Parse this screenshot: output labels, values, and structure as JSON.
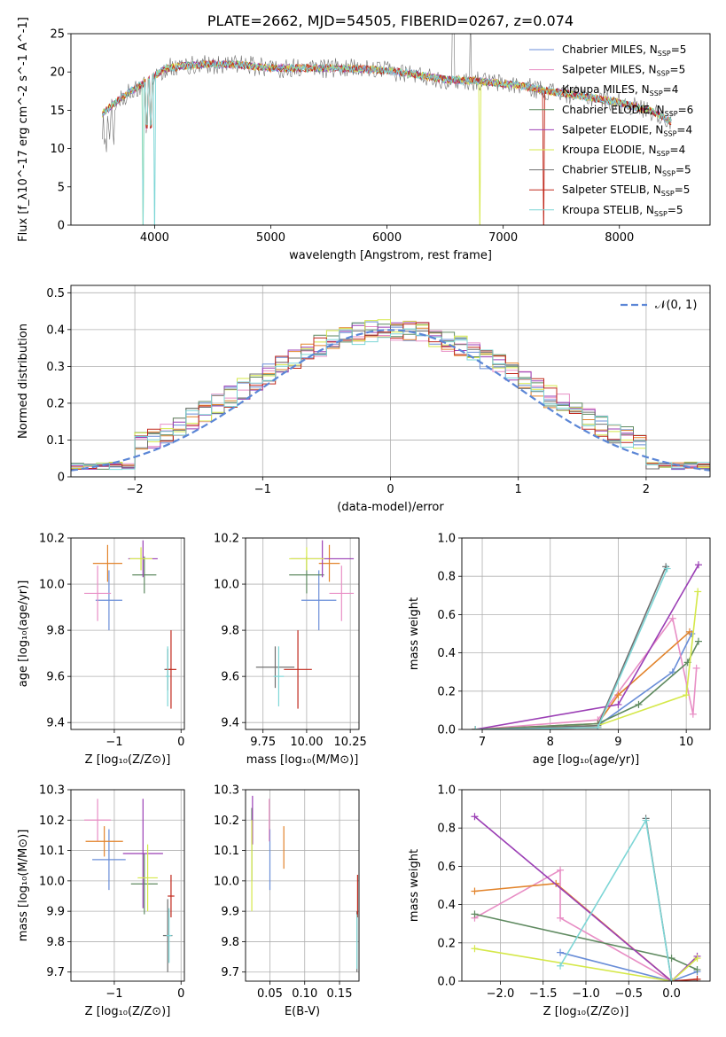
{
  "colors": [
    "#6a8ed8",
    "#e88ec5",
    "#e2842c",
    "#5f8a60",
    "#9b3fb5",
    "#d5e84a",
    "#707070",
    "#c0281c",
    "#7dd6d6"
  ],
  "chart_data": [
    {
      "id": "spectrum",
      "type": "line",
      "title": "PLATE=2662, MJD=54505, FIBERID=0267, z=0.074",
      "xlabel": "wavelength [Angstrom, rest frame]",
      "ylabel": "Flux [f_λ10^-17 erg cm^-2 s^-1 A^-1]",
      "xlim": [
        3280,
        8780
      ],
      "ylim": [
        0,
        25
      ],
      "xticks": [
        4000,
        5000,
        6000,
        7000,
        8000
      ],
      "yticks": [
        0,
        5,
        10,
        15,
        20,
        25
      ],
      "legend": [
        "Chabrier MILES, N_SSP=5",
        "Salpeter MILES, N_SSP=5",
        "Kroupa MILES, N_SSP=4",
        "Chabrier ELODIE, N_SSP=6",
        "Salpeter ELODIE, N_SSP=4",
        "Kroupa ELODIE, N_SSP=4",
        "Chabrier STELIB, N_SSP=5",
        "Salpeter STELIB, N_SSP=5",
        "Kroupa STELIB, N_SSP=5"
      ],
      "continuum": {
        "x": [
          3550,
          3700,
          3900,
          4100,
          4400,
          4700,
          5000,
          5300,
          5600,
          5900,
          6200,
          6500,
          6800,
          7100,
          7400,
          7700,
          8000,
          8300,
          8450
        ],
        "y": [
          14.5,
          16.5,
          18.5,
          20.5,
          21.0,
          21.0,
          20.5,
          20.5,
          20.5,
          20.3,
          19.8,
          19.0,
          18.8,
          18.3,
          17.5,
          16.8,
          16.0,
          14.8,
          13.5
        ]
      }
    },
    {
      "id": "residuals",
      "type": "histogram",
      "xlabel": "(data-model)/error",
      "ylabel": "Normed distribution",
      "xlim": [
        -2.5,
        2.5
      ],
      "ylim": [
        0,
        0.52
      ],
      "xticks": [
        -2,
        -1,
        0,
        1,
        2
      ],
      "yticks": [
        0.0,
        0.1,
        0.2,
        0.3,
        0.4,
        0.5
      ],
      "legend": [
        "𝒩(0, 1)"
      ],
      "bin_width": 0.1
    },
    {
      "id": "age-vs-Z",
      "type": "scatter",
      "xlabel": "Z [log₁₀(Z/Z⊙)]",
      "ylabel": "age  [log₁₀(age/yr)]",
      "xlim": [
        -1.65,
        0.05
      ],
      "ylim": [
        9.37,
        10.2
      ],
      "xticks": [
        -1,
        0
      ],
      "yticks": [
        9.4,
        9.6,
        9.8,
        10.0,
        10.2
      ],
      "points": [
        {
          "x": -1.08,
          "y": 9.93,
          "xerr": 0.2,
          "yerr": 0.13
        },
        {
          "x": -1.25,
          "y": 9.96,
          "xerr": 0.2,
          "yerr": 0.12
        },
        {
          "x": -1.1,
          "y": 10.09,
          "xerr": 0.22,
          "yerr": 0.08
        },
        {
          "x": -0.55,
          "y": 10.04,
          "xerr": 0.18,
          "yerr": 0.08
        },
        {
          "x": -0.57,
          "y": 10.11,
          "xerr": 0.22,
          "yerr": 0.08
        },
        {
          "x": -0.6,
          "y": 10.11,
          "xerr": 0.17,
          "yerr": 0.05
        },
        {
          "x": -0.2,
          "y": 9.63,
          "xerr": 0.05,
          "yerr": 0.09
        },
        {
          "x": -0.15,
          "y": 9.63,
          "xerr": 0.08,
          "yerr": 0.17
        },
        {
          "x": -0.2,
          "y": 9.6,
          "xerr": 0.03,
          "yerr": 0.13
        }
      ]
    },
    {
      "id": "age-vs-mass",
      "type": "scatter",
      "xlabel": "mass [log₁₀(M/M⊙)]",
      "ylabel": "",
      "xlim": [
        9.65,
        10.3
      ],
      "ylim": [
        9.37,
        10.2
      ],
      "xticks": [
        9.75,
        10.0,
        10.25
      ],
      "yticks": [
        9.4,
        9.6,
        9.8,
        10.0,
        10.2
      ],
      "points": [
        {
          "x": 10.07,
          "y": 9.93,
          "xerr": 0.1,
          "yerr": 0.13
        },
        {
          "x": 10.2,
          "y": 9.96,
          "xerr": 0.07,
          "yerr": 0.12
        },
        {
          "x": 10.13,
          "y": 10.09,
          "xerr": 0.06,
          "yerr": 0.08
        },
        {
          "x": 10.0,
          "y": 10.04,
          "xerr": 0.1,
          "yerr": 0.08
        },
        {
          "x": 10.09,
          "y": 10.11,
          "xerr": 0.18,
          "yerr": 0.08
        },
        {
          "x": 10.0,
          "y": 10.11,
          "xerr": 0.1,
          "yerr": 0.05
        },
        {
          "x": 9.82,
          "y": 9.64,
          "xerr": 0.11,
          "yerr": 0.09
        },
        {
          "x": 9.95,
          "y": 9.63,
          "xerr": 0.08,
          "yerr": 0.17
        },
        {
          "x": 9.84,
          "y": 9.6,
          "xerr": 0.03,
          "yerr": 0.13
        }
      ]
    },
    {
      "id": "weight-vs-age",
      "type": "line",
      "xlabel": "age  [log₁₀(age/yr)]",
      "ylabel": "mass weight",
      "xlim": [
        6.7,
        10.35
      ],
      "ylim": [
        0,
        1.0
      ],
      "xticks": [
        7,
        8,
        9,
        10
      ],
      "yticks": [
        0.0,
        0.2,
        0.4,
        0.6,
        0.8,
        1.0
      ],
      "series": [
        {
          "x": [
            6.9,
            8.7,
            9.8,
            10.08
          ],
          "y": [
            0.0,
            0.02,
            0.3,
            0.5
          ]
        },
        {
          "x": [
            6.9,
            8.7,
            9.8,
            10.1,
            10.15
          ],
          "y": [
            0.0,
            0.05,
            0.58,
            0.08,
            0.32
          ]
        },
        {
          "x": [
            6.9,
            8.7,
            9.0,
            10.05
          ],
          "y": [
            0.0,
            0.03,
            0.18,
            0.51
          ]
        },
        {
          "x": [
            6.9,
            8.7,
            9.3,
            10.02,
            10.18
          ],
          "y": [
            0.0,
            0.03,
            0.13,
            0.35,
            0.46
          ]
        },
        {
          "x": [
            6.9,
            9.0,
            10.18
          ],
          "y": [
            0.0,
            0.13,
            0.86
          ]
        },
        {
          "x": [
            6.9,
            8.7,
            10.0,
            10.17
          ],
          "y": [
            0.0,
            0.02,
            0.18,
            0.72
          ]
        },
        {
          "x": [
            6.9,
            8.7,
            9.7
          ],
          "y": [
            0.0,
            0.02,
            0.85
          ]
        },
        {
          "x": [
            6.9,
            8.7
          ],
          "y": [
            0.0,
            0.01
          ]
        },
        {
          "x": [
            6.9,
            8.7,
            9.72
          ],
          "y": [
            0.0,
            0.01,
            0.84
          ]
        }
      ]
    },
    {
      "id": "mass-vs-Z",
      "type": "scatter",
      "xlabel": "Z [log₁₀(Z/Z⊙)]",
      "ylabel": "mass [log₁₀(M/M⊙)]",
      "xlim": [
        -1.65,
        0.05
      ],
      "ylim": [
        9.67,
        10.3
      ],
      "xticks": [
        -1,
        0
      ],
      "yticks": [
        9.7,
        9.8,
        9.9,
        10.0,
        10.1,
        10.2,
        10.3
      ],
      "points": [
        {
          "x": -1.08,
          "y": 10.07,
          "xerr": 0.25,
          "yerr": 0.1
        },
        {
          "x": -1.25,
          "y": 10.2,
          "xerr": 0.2,
          "yerr": 0.07
        },
        {
          "x": -1.15,
          "y": 10.13,
          "xerr": 0.28,
          "yerr": 0.05
        },
        {
          "x": -0.55,
          "y": 9.99,
          "xerr": 0.2,
          "yerr": 0.1
        },
        {
          "x": -0.57,
          "y": 10.09,
          "xerr": 0.3,
          "yerr": 0.18
        },
        {
          "x": -0.5,
          "y": 10.01,
          "xerr": 0.15,
          "yerr": 0.11
        },
        {
          "x": -0.2,
          "y": 9.82,
          "xerr": 0.07,
          "yerr": 0.12
        },
        {
          "x": -0.15,
          "y": 9.95,
          "xerr": 0.05,
          "yerr": 0.07
        },
        {
          "x": -0.18,
          "y": 9.82,
          "xerr": 0.04,
          "yerr": 0.09
        }
      ]
    },
    {
      "id": "mass-vs-EBV",
      "type": "scatter",
      "xlabel": "E(B-V)",
      "ylabel": "",
      "xlim": [
        0.015,
        0.178
      ],
      "ylim": [
        9.67,
        10.3
      ],
      "xticks": [
        0.05,
        0.1,
        0.15
      ],
      "yticks": [
        9.7,
        9.8,
        9.9,
        10.0,
        10.1,
        10.2,
        10.3
      ],
      "points": [
        {
          "x": 0.05,
          "y": 10.07,
          "xerr": 0,
          "yerr": 0.1
        },
        {
          "x": 0.049,
          "y": 10.2,
          "xerr": 0,
          "yerr": 0.07
        },
        {
          "x": 0.07,
          "y": 10.11,
          "xerr": 0,
          "yerr": 0.07
        },
        {
          "x": 0.024,
          "y": 10.12,
          "xerr": 0,
          "yerr": 0.12
        },
        {
          "x": 0.025,
          "y": 10.2,
          "xerr": 0,
          "yerr": 0.08
        },
        {
          "x": 0.024,
          "y": 10.05,
          "xerr": 0,
          "yerr": 0.15
        },
        {
          "x": 0.175,
          "y": 9.8,
          "xerr": 0,
          "yerr": 0.1
        },
        {
          "x": 0.176,
          "y": 9.95,
          "xerr": 0,
          "yerr": 0.07
        },
        {
          "x": 0.175,
          "y": 9.8,
          "xerr": 0,
          "yerr": 0.09
        }
      ]
    },
    {
      "id": "weight-vs-Z",
      "type": "line",
      "xlabel": "Z [log₁₀(Z/Z⊙)]",
      "ylabel": "mass weight",
      "xlim": [
        -2.45,
        0.45
      ],
      "ylim": [
        0,
        1.0
      ],
      "xticks": [
        -2.0,
        -1.5,
        -1.0,
        -0.5,
        0.0
      ],
      "yticks": [
        0.0,
        0.2,
        0.4,
        0.6,
        0.8,
        1.0
      ],
      "series": [
        {
          "x": [
            -1.3,
            0.0,
            0.3
          ],
          "y": [
            0.15,
            0.0,
            0.05
          ]
        },
        {
          "x": [
            -2.3,
            -1.3,
            -1.3,
            0.0
          ],
          "y": [
            0.33,
            0.58,
            0.33,
            0.0
          ]
        },
        {
          "x": [
            -2.3,
            -1.35,
            0.0
          ],
          "y": [
            0.47,
            0.51,
            0.0
          ]
        },
        {
          "x": [
            -2.3,
            0.0,
            0.3
          ],
          "y": [
            0.35,
            0.12,
            0.06
          ]
        },
        {
          "x": [
            -2.3,
            0.0,
            0.3
          ],
          "y": [
            0.86,
            0.0,
            0.13
          ]
        },
        {
          "x": [
            -2.3,
            0.0,
            0.3
          ],
          "y": [
            0.17,
            0.0,
            0.12
          ]
        },
        {
          "x": [
            -0.3,
            0.0,
            0.3
          ],
          "y": [
            0.85,
            0.0,
            0.0
          ]
        },
        {
          "x": [
            0.0,
            0.3
          ],
          "y": [
            0.0,
            0.01
          ]
        },
        {
          "x": [
            -1.3,
            -0.3,
            0.0
          ],
          "y": [
            0.08,
            0.84,
            0.0
          ]
        }
      ]
    }
  ]
}
